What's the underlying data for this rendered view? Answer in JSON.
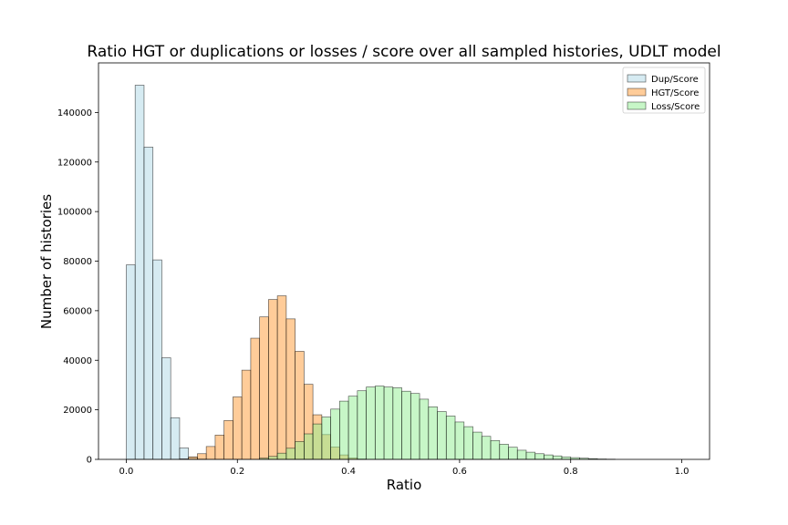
{
  "chart_data": {
    "type": "bar",
    "title": "Ratio HGT or duplications or losses / score over all sampled histories, UDLT model",
    "xlabel": "Ratio",
    "ylabel": "Number of histories",
    "xlim": [
      -0.05,
      1.05
    ],
    "ylim": [
      0,
      160000
    ],
    "xticks": [
      0.0,
      0.2,
      0.4,
      0.6,
      0.8,
      1.0
    ],
    "xtick_labels": [
      "0.0",
      "0.2",
      "0.4",
      "0.6",
      "0.8",
      "1.0"
    ],
    "yticks": [
      0,
      20000,
      40000,
      60000,
      80000,
      100000,
      120000,
      140000
    ],
    "ytick_labels": [
      "0",
      "20000",
      "40000",
      "60000",
      "80000",
      "100000",
      "120000",
      "140000"
    ],
    "legend_position": "upper right",
    "bin_width": 0.016,
    "series": [
      {
        "name": "Dup/Score",
        "color": "#add8e6",
        "bin_start": 0.0,
        "values": [
          78500,
          151000,
          126000,
          80500,
          41000,
          16800,
          4600,
          800,
          100
        ]
      },
      {
        "name": "HGT/Score",
        "color": "#ff9933",
        "bin_start": 0.0,
        "values": [
          0,
          0,
          0,
          0,
          0,
          0,
          200,
          1000,
          2300,
          5200,
          9800,
          15700,
          25200,
          36000,
          48900,
          57500,
          64500,
          66000,
          56700,
          43600,
          30300,
          18000,
          10000,
          5000,
          1800,
          600,
          150
        ]
      },
      {
        "name": "Loss/Score",
        "color": "#90ee90",
        "bin_start": 0.0,
        "values": [
          0,
          0,
          0,
          0,
          0,
          0,
          0,
          0,
          0,
          0,
          0,
          0,
          0,
          0,
          0,
          500,
          1200,
          2500,
          4500,
          7200,
          10300,
          14300,
          17100,
          20300,
          23500,
          25500,
          27700,
          29200,
          29600,
          29200,
          28900,
          27500,
          26600,
          24300,
          21200,
          19300,
          17500,
          15100,
          13200,
          11000,
          9300,
          7600,
          6100,
          4900,
          3700,
          2900,
          2300,
          1800,
          1400,
          1000,
          700,
          500,
          300,
          150,
          80
        ]
      }
    ]
  }
}
